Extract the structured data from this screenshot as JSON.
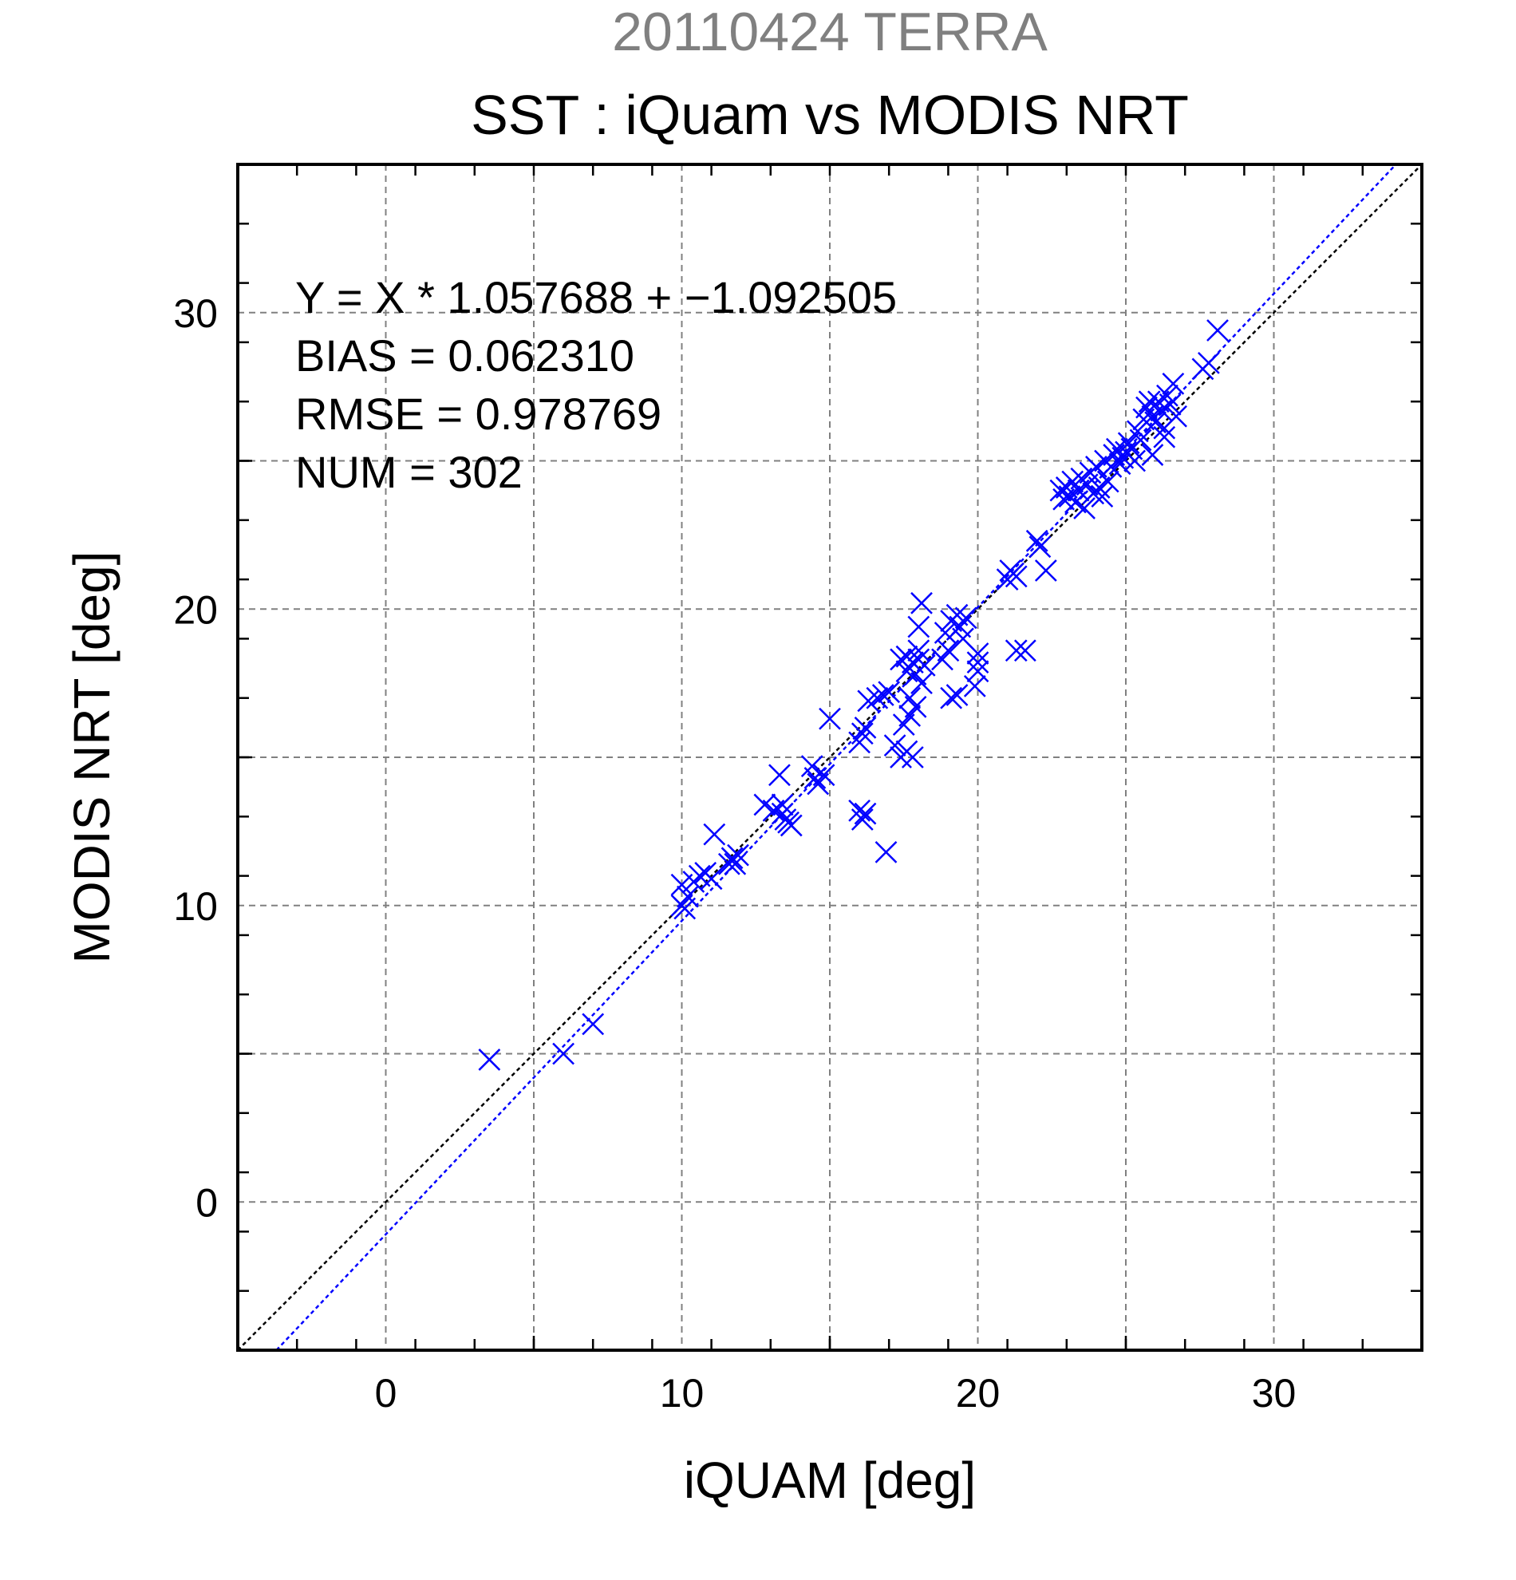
{
  "chart_data": {
    "type": "scatter",
    "title": "20110424 TERRA",
    "subtitle": "SST : iQuam vs MODIS NRT",
    "xlabel": "iQUAM [deg]",
    "ylabel": "MODIS NRT [deg]",
    "xlim": [
      -5,
      35
    ],
    "ylim": [
      -5,
      35
    ],
    "xticks": [
      0,
      10,
      20,
      30
    ],
    "yticks": [
      0,
      10,
      20,
      30
    ],
    "grid": true,
    "marker_color": "#0000ff",
    "one_to_one_line_color": "#000000",
    "fit_line_color": "#0000ff",
    "fit": {
      "slope": 1.057688,
      "intercept": -1.092505
    },
    "stats": [
      "Y = X * 1.057688 + −1.092505",
      "BIAS = 0.062310",
      "RMSE = 0.978769",
      "NUM = 302"
    ],
    "points": [
      [
        3.5,
        4.8
      ],
      [
        6.0,
        5.0
      ],
      [
        7.0,
        6.0
      ],
      [
        10.0,
        10.0
      ],
      [
        10.1,
        9.9
      ],
      [
        10.0,
        10.7
      ],
      [
        10.2,
        10.3
      ],
      [
        10.4,
        10.8
      ],
      [
        10.6,
        11.0
      ],
      [
        10.8,
        11.1
      ],
      [
        11.0,
        10.9
      ],
      [
        11.1,
        12.4
      ],
      [
        11.6,
        11.4
      ],
      [
        11.7,
        11.6
      ],
      [
        11.8,
        11.4
      ],
      [
        11.9,
        11.7
      ],
      [
        12.8,
        13.4
      ],
      [
        13.1,
        13.2
      ],
      [
        13.3,
        14.4
      ],
      [
        13.4,
        13.1
      ],
      [
        13.5,
        12.9
      ],
      [
        13.6,
        12.8
      ],
      [
        13.7,
        12.7
      ],
      [
        13.4,
        13.4
      ],
      [
        14.4,
        14.7
      ],
      [
        14.5,
        14.3
      ],
      [
        14.6,
        14.1
      ],
      [
        14.8,
        14.4
      ],
      [
        15.0,
        16.3
      ],
      [
        16.0,
        13.2
      ],
      [
        16.1,
        12.9
      ],
      [
        16.2,
        13.1
      ],
      [
        16.0,
        15.5
      ],
      [
        16.1,
        15.8
      ],
      [
        16.2,
        16.0
      ],
      [
        16.3,
        16.9
      ],
      [
        16.6,
        17.0
      ],
      [
        16.8,
        17.1
      ],
      [
        17.0,
        17.2
      ],
      [
        16.9,
        11.8
      ],
      [
        17.2,
        15.4
      ],
      [
        17.4,
        15.0
      ],
      [
        17.5,
        16.1
      ],
      [
        17.6,
        15.2
      ],
      [
        17.7,
        16.4
      ],
      [
        17.8,
        15.0
      ],
      [
        17.9,
        16.7
      ],
      [
        17.4,
        18.3
      ],
      [
        17.6,
        18.4
      ],
      [
        17.8,
        18.2
      ],
      [
        18.0,
        18.3
      ],
      [
        18.2,
        18.1
      ],
      [
        17.9,
        17.8
      ],
      [
        18.1,
        17.5
      ],
      [
        17.6,
        17.9
      ],
      [
        17.7,
        17.0
      ],
      [
        18.0,
        18.6
      ],
      [
        18.1,
        20.2
      ],
      [
        18.0,
        19.4
      ],
      [
        18.8,
        18.3
      ],
      [
        19.0,
        18.6
      ],
      [
        18.9,
        19.2
      ],
      [
        19.1,
        19.6
      ],
      [
        19.3,
        19.8
      ],
      [
        19.4,
        19.4
      ],
      [
        19.6,
        19.7
      ],
      [
        19.5,
        19.0
      ],
      [
        19.1,
        17.0
      ],
      [
        19.3,
        17.1
      ],
      [
        19.9,
        17.4
      ],
      [
        20.0,
        17.9
      ],
      [
        20.0,
        18.5
      ],
      [
        20.0,
        18.2
      ],
      [
        21.0,
        21.0
      ],
      [
        21.1,
        21.3
      ],
      [
        21.2,
        21.2
      ],
      [
        21.3,
        21.1
      ],
      [
        21.3,
        18.6
      ],
      [
        21.6,
        18.6
      ],
      [
        22.0,
        22.3
      ],
      [
        22.1,
        22.1
      ],
      [
        22.3,
        21.3
      ],
      [
        22.8,
        24.0
      ],
      [
        22.9,
        23.7
      ],
      [
        23.0,
        24.1
      ],
      [
        23.1,
        23.8
      ],
      [
        23.2,
        24.3
      ],
      [
        23.3,
        23.6
      ],
      [
        23.4,
        24.0
      ],
      [
        23.5,
        24.4
      ],
      [
        23.6,
        23.4
      ],
      [
        23.7,
        24.2
      ],
      [
        23.8,
        24.6
      ],
      [
        23.9,
        23.9
      ],
      [
        24.0,
        24.8
      ],
      [
        24.1,
        24.1
      ],
      [
        24.2,
        23.8
      ],
      [
        24.3,
        25.0
      ],
      [
        24.4,
        24.3
      ],
      [
        24.5,
        24.8
      ],
      [
        24.6,
        25.2
      ],
      [
        24.7,
        25.4
      ],
      [
        24.8,
        24.9
      ],
      [
        24.9,
        25.1
      ],
      [
        25.0,
        25.3
      ],
      [
        25.1,
        25.6
      ],
      [
        25.2,
        25.4
      ],
      [
        25.3,
        25.0
      ],
      [
        25.4,
        26.0
      ],
      [
        25.5,
        25.7
      ],
      [
        25.6,
        26.4
      ],
      [
        25.7,
        26.8
      ],
      [
        25.8,
        27.0
      ],
      [
        25.9,
        26.5
      ],
      [
        26.0,
        26.3
      ],
      [
        26.1,
        27.0
      ],
      [
        26.2,
        26.7
      ],
      [
        26.3,
        26.1
      ],
      [
        26.4,
        27.2
      ],
      [
        26.5,
        26.9
      ],
      [
        26.6,
        27.6
      ],
      [
        26.7,
        26.5
      ],
      [
        25.9,
        25.2
      ],
      [
        26.3,
        25.8
      ],
      [
        27.6,
        28.1
      ],
      [
        27.8,
        28.3
      ],
      [
        28.1,
        29.4
      ]
    ]
  }
}
